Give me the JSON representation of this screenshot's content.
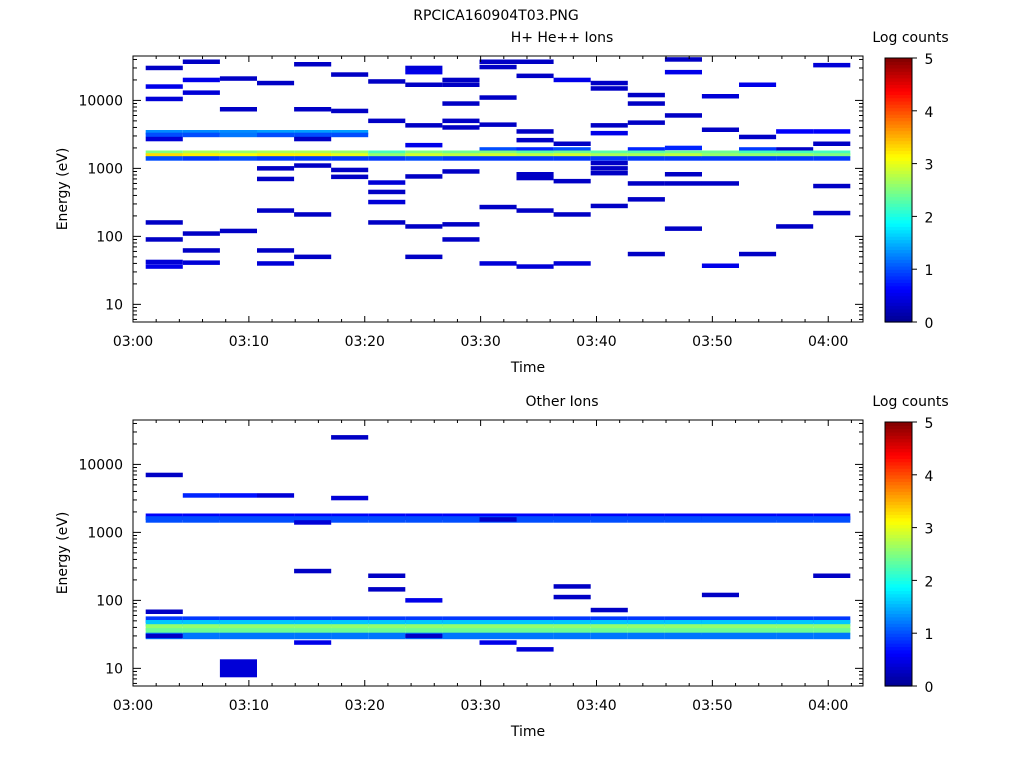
{
  "figure_title": "RPCICA160904T03.PNG",
  "colormap": [
    "#00008f",
    "#0000ff",
    "#0080ff",
    "#00ffff",
    "#80ff80",
    "#ffff00",
    "#ff8000",
    "#ff0000",
    "#800000"
  ],
  "chart_data": [
    {
      "type": "heatmap",
      "title": "H+ He++ Ions",
      "xlabel": "Time",
      "ylabel": "Energy (eV)",
      "colorbar_label": "Log counts",
      "colorbar_ticks": [
        "0",
        "1",
        "2",
        "3",
        "4",
        "5"
      ],
      "xticks": [
        "03:00",
        "03:10",
        "03:20",
        "03:30",
        "03:40",
        "03:50",
        "04:00"
      ],
      "yticks": [
        "10",
        "100",
        "1000",
        "10000"
      ],
      "xlim_minutes": [
        0,
        63
      ],
      "ylim_eV": [
        5.5,
        45000
      ],
      "scale_y": "log",
      "time_bin_edges_minutes": [
        1.1,
        4.3,
        7.5,
        10.7,
        13.9,
        17.1,
        20.3,
        23.5,
        26.7,
        29.9,
        33.1,
        36.3,
        39.5,
        42.7,
        45.9,
        49.1,
        52.3,
        55.5,
        58.7,
        61.9
      ],
      "cells": [
        {
          "e": 30000,
          "v": 0.3
        },
        {
          "e": 16000,
          "v": 0.5
        },
        {
          "e": 10500,
          "v": 0.4
        },
        {
          "e": 3400,
          "v": 1.3
        },
        {
          "e": 3100,
          "v": 1.0
        },
        {
          "e": 2700,
          "v": 0.4
        },
        {
          "e": 1700,
          "v": 2.5
        },
        {
          "e": 1550,
          "v": 3.3
        },
        {
          "e": 1400,
          "v": 1.0
        },
        {
          "e": 160,
          "v": 0.3
        },
        {
          "e": 90,
          "v": 0.3
        },
        {
          "e": 42,
          "v": 0.4
        },
        {
          "e": 36,
          "v": 0.5
        },
        {
          "e": 37000,
          "v": 0.3
        },
        {
          "e": 20000,
          "v": 0.5
        },
        {
          "e": 13000,
          "v": 0.4
        },
        {
          "e": 3400,
          "v": 1.3
        },
        {
          "e": 3100,
          "v": 1.0
        },
        {
          "e": 1700,
          "v": 2.7
        },
        {
          "e": 1550,
          "v": 3.2
        },
        {
          "e": 1400,
          "v": 0.9
        },
        {
          "e": 110,
          "v": 0.3
        },
        {
          "e": 62,
          "v": 0.3
        },
        {
          "e": 41,
          "v": 0.4
        },
        {
          "e": 21000,
          "v": 0.3
        },
        {
          "e": 7400,
          "v": 0.3
        },
        {
          "e": 3400,
          "v": 1.3
        },
        {
          "e": 3100,
          "v": 1.2
        },
        {
          "e": 1700,
          "v": 2.6
        },
        {
          "e": 1550,
          "v": 3.1
        },
        {
          "e": 1400,
          "v": 1.0
        },
        {
          "e": 120,
          "v": 0.3
        },
        {
          "e": 18000,
          "v": 0.3
        },
        {
          "e": 3400,
          "v": 1.4
        },
        {
          "e": 3100,
          "v": 1.0
        },
        {
          "e": 1700,
          "v": 2.7
        },
        {
          "e": 1550,
          "v": 3.2
        },
        {
          "e": 1400,
          "v": 0.9
        },
        {
          "e": 1000,
          "v": 0.3
        },
        {
          "e": 700,
          "v": 0.3
        },
        {
          "e": 240,
          "v": 0.3
        },
        {
          "e": 62,
          "v": 0.3
        },
        {
          "e": 40,
          "v": 0.4
        },
        {
          "e": 34000,
          "v": 0.3
        },
        {
          "e": 7400,
          "v": 0.3
        },
        {
          "e": 3400,
          "v": 1.4
        },
        {
          "e": 3100,
          "v": 1.0
        },
        {
          "e": 2700,
          "v": 0.3
        },
        {
          "e": 1700,
          "v": 2.7
        },
        {
          "e": 1550,
          "v": 3.2
        },
        {
          "e": 1400,
          "v": 0.9
        },
        {
          "e": 1100,
          "v": 0.3
        },
        {
          "e": 210,
          "v": 0.3
        },
        {
          "e": 50,
          "v": 0.3
        },
        {
          "e": 24000,
          "v": 0.3
        },
        {
          "e": 7000,
          "v": 0.3
        },
        {
          "e": 3400,
          "v": 1.4
        },
        {
          "e": 3100,
          "v": 1.0
        },
        {
          "e": 1700,
          "v": 2.6
        },
        {
          "e": 1550,
          "v": 3.0
        },
        {
          "e": 1400,
          "v": 0.9
        },
        {
          "e": 950,
          "v": 0.3
        },
        {
          "e": 750,
          "v": 0.3
        },
        {
          "e": 19000,
          "v": 0.3
        },
        {
          "e": 5000,
          "v": 0.3
        },
        {
          "e": 1700,
          "v": 2.2
        },
        {
          "e": 1550,
          "v": 2.6
        },
        {
          "e": 1400,
          "v": 0.9
        },
        {
          "e": 620,
          "v": 0.4
        },
        {
          "e": 450,
          "v": 0.3
        },
        {
          "e": 320,
          "v": 0.4
        },
        {
          "e": 160,
          "v": 0.3
        },
        {
          "e": 30000,
          "v": 0.4
        },
        {
          "e": 26000,
          "v": 0.5
        },
        {
          "e": 17000,
          "v": 0.3
        },
        {
          "e": 4300,
          "v": 0.3
        },
        {
          "e": 2200,
          "v": 0.5
        },
        {
          "e": 1700,
          "v": 2.5
        },
        {
          "e": 1550,
          "v": 2.9
        },
        {
          "e": 1400,
          "v": 1.0
        },
        {
          "e": 760,
          "v": 0.3
        },
        {
          "e": 140,
          "v": 0.3
        },
        {
          "e": 50,
          "v": 0.3
        },
        {
          "e": 20000,
          "v": 0.3
        },
        {
          "e": 17000,
          "v": 0.3
        },
        {
          "e": 9000,
          "v": 0.3
        },
        {
          "e": 5000,
          "v": 0.3
        },
        {
          "e": 4000,
          "v": 0.3
        },
        {
          "e": 1700,
          "v": 2.4
        },
        {
          "e": 1550,
          "v": 2.8
        },
        {
          "e": 1400,
          "v": 0.9
        },
        {
          "e": 900,
          "v": 0.3
        },
        {
          "e": 150,
          "v": 0.3
        },
        {
          "e": 90,
          "v": 0.3
        },
        {
          "e": 37000,
          "v": 0.3
        },
        {
          "e": 31000,
          "v": 0.3
        },
        {
          "e": 11000,
          "v": 0.3
        },
        {
          "e": 4400,
          "v": 0.3
        },
        {
          "e": 1900,
          "v": 1.0
        },
        {
          "e": 1700,
          "v": 2.5
        },
        {
          "e": 1550,
          "v": 2.9
        },
        {
          "e": 1400,
          "v": 0.9
        },
        {
          "e": 270,
          "v": 0.3
        },
        {
          "e": 40,
          "v": 0.4
        },
        {
          "e": 37000,
          "v": 0.3
        },
        {
          "e": 23000,
          "v": 0.3
        },
        {
          "e": 3500,
          "v": 0.3
        },
        {
          "e": 2600,
          "v": 0.3
        },
        {
          "e": 1900,
          "v": 0.8
        },
        {
          "e": 1700,
          "v": 2.3
        },
        {
          "e": 1550,
          "v": 2.8
        },
        {
          "e": 1400,
          "v": 0.9
        },
        {
          "e": 820,
          "v": 0.3
        },
        {
          "e": 720,
          "v": 0.3
        },
        {
          "e": 240,
          "v": 0.3
        },
        {
          "e": 36,
          "v": 0.4
        },
        {
          "e": 20000,
          "v": 0.5
        },
        {
          "e": 2300,
          "v": 0.3
        },
        {
          "e": 1900,
          "v": 1.0
        },
        {
          "e": 1700,
          "v": 2.4
        },
        {
          "e": 1550,
          "v": 2.9
        },
        {
          "e": 1400,
          "v": 0.9
        },
        {
          "e": 650,
          "v": 0.3
        },
        {
          "e": 210,
          "v": 0.3
        },
        {
          "e": 40,
          "v": 0.4
        },
        {
          "e": 18000,
          "v": 0.3
        },
        {
          "e": 15000,
          "v": 0.3
        },
        {
          "e": 4300,
          "v": 0.3
        },
        {
          "e": 3300,
          "v": 0.5
        },
        {
          "e": 1700,
          "v": 2.3
        },
        {
          "e": 1550,
          "v": 2.7
        },
        {
          "e": 1400,
          "v": 0.9
        },
        {
          "e": 1200,
          "v": 0.3
        },
        {
          "e": 1000,
          "v": 0.3
        },
        {
          "e": 850,
          "v": 0.3
        },
        {
          "e": 280,
          "v": 0.3
        },
        {
          "e": 12000,
          "v": 0.3
        },
        {
          "e": 9000,
          "v": 0.3
        },
        {
          "e": 4700,
          "v": 0.3
        },
        {
          "e": 1900,
          "v": 0.8
        },
        {
          "e": 1700,
          "v": 2.3
        },
        {
          "e": 1550,
          "v": 2.7
        },
        {
          "e": 1400,
          "v": 0.9
        },
        {
          "e": 600,
          "v": 0.3
        },
        {
          "e": 350,
          "v": 0.3
        },
        {
          "e": 55,
          "v": 0.3
        },
        {
          "e": 40000,
          "v": 0.3
        },
        {
          "e": 26000,
          "v": 0.5
        },
        {
          "e": 6000,
          "v": 0.3
        },
        {
          "e": 2000,
          "v": 0.8
        },
        {
          "e": 1700,
          "v": 2.4
        },
        {
          "e": 1550,
          "v": 2.8
        },
        {
          "e": 1400,
          "v": 0.9
        },
        {
          "e": 820,
          "v": 0.3
        },
        {
          "e": 600,
          "v": 0.3
        },
        {
          "e": 130,
          "v": 0.3
        },
        {
          "e": 11500,
          "v": 0.4
        },
        {
          "e": 3700,
          "v": 0.3
        },
        {
          "e": 1700,
          "v": 2.4
        },
        {
          "e": 1550,
          "v": 2.6
        },
        {
          "e": 1400,
          "v": 0.9
        },
        {
          "e": 600,
          "v": 0.3
        },
        {
          "e": 37,
          "v": 0.5
        },
        {
          "e": 17000,
          "v": 0.5
        },
        {
          "e": 2900,
          "v": 0.3
        },
        {
          "e": 1900,
          "v": 0.9
        },
        {
          "e": 1700,
          "v": 2.2
        },
        {
          "e": 1550,
          "v": 2.6
        },
        {
          "e": 1400,
          "v": 0.9
        },
        {
          "e": 55,
          "v": 0.3
        },
        {
          "e": 3500,
          "v": 0.6
        },
        {
          "e": 1900,
          "v": 0.3
        },
        {
          "e": 1700,
          "v": 2.2
        },
        {
          "e": 1550,
          "v": 2.6
        },
        {
          "e": 1400,
          "v": 0.9
        },
        {
          "e": 140,
          "v": 0.3
        },
        {
          "e": 33000,
          "v": 0.4
        },
        {
          "e": 3500,
          "v": 0.6
        },
        {
          "e": 2300,
          "v": 0.3
        },
        {
          "e": 1700,
          "v": 2.2
        },
        {
          "e": 1550,
          "v": 2.5
        },
        {
          "e": 1400,
          "v": 0.9
        },
        {
          "e": 550,
          "v": 0.3
        },
        {
          "e": 220,
          "v": 0.3
        }
      ],
      "cell_bins": [
        0,
        0,
        0,
        0,
        0,
        0,
        0,
        0,
        0,
        0,
        0,
        0,
        0,
        1,
        1,
        1,
        1,
        1,
        1,
        1,
        1,
        1,
        1,
        1,
        2,
        2,
        2,
        2,
        2,
        2,
        2,
        2,
        3,
        3,
        3,
        3,
        3,
        3,
        3,
        3,
        3,
        3,
        3,
        4,
        4,
        4,
        4,
        4,
        4,
        4,
        4,
        4,
        4,
        4,
        5,
        5,
        5,
        5,
        5,
        5,
        5,
        5,
        5,
        6,
        6,
        6,
        6,
        6,
        6,
        6,
        6,
        6,
        7,
        7,
        7,
        7,
        7,
        7,
        7,
        7,
        7,
        7,
        7,
        8,
        8,
        8,
        8,
        8,
        8,
        8,
        8,
        8,
        8,
        8,
        9,
        9,
        9,
        9,
        9,
        9,
        9,
        9,
        9,
        9,
        10,
        10,
        10,
        10,
        10,
        10,
        10,
        10,
        10,
        10,
        10,
        10,
        11,
        11,
        11,
        11,
        11,
        11,
        11,
        11,
        11,
        12,
        12,
        12,
        12,
        12,
        12,
        12,
        12,
        12,
        12,
        12,
        13,
        13,
        13,
        13,
        13,
        13,
        13,
        13,
        13,
        13,
        14,
        14,
        14,
        14,
        14,
        14,
        14,
        14,
        14,
        14,
        15,
        15,
        15,
        15,
        15,
        15,
        15,
        16,
        16,
        16,
        16,
        16,
        16,
        16,
        17,
        17,
        17,
        17,
        17,
        17,
        18,
        18,
        18,
        18,
        18,
        18,
        18,
        18
      ]
    },
    {
      "type": "heatmap",
      "title": "Other Ions",
      "xlabel": "Time",
      "ylabel": "Energy (eV)",
      "colorbar_label": "Log counts",
      "colorbar_ticks": [
        "0",
        "1",
        "2",
        "3",
        "4",
        "5"
      ],
      "xticks": [
        "03:00",
        "03:10",
        "03:20",
        "03:30",
        "03:40",
        "03:50",
        "04:00"
      ],
      "yticks": [
        "10",
        "100",
        "1000",
        "10000"
      ],
      "xlim_minutes": [
        0,
        63
      ],
      "ylim_eV": [
        5.5,
        45000
      ],
      "scale_y": "log",
      "time_bin_edges_minutes": [
        1.1,
        4.3,
        7.5,
        10.7,
        13.9,
        17.1,
        20.3,
        23.5,
        26.7,
        29.9,
        33.1,
        36.3,
        39.5,
        42.7,
        45.9,
        49.1,
        52.3,
        55.5,
        58.7,
        61.9
      ],
      "constant_bands": [
        {
          "e": 1700,
          "v": 0.6
        },
        {
          "e": 1550,
          "v": 1.0
        },
        {
          "e": 52,
          "v": 0.9
        },
        {
          "e": 46,
          "v": 1.6
        },
        {
          "e": 40,
          "v": 2.6
        },
        {
          "e": 35,
          "v": 2.4
        },
        {
          "e": 30,
          "v": 1.2
        }
      ],
      "cells": [
        {
          "e": 7000,
          "v": 0.3
        },
        {
          "e": 68,
          "v": 0.3
        },
        {
          "e": 30,
          "v": 0.3
        },
        {
          "e": 3500,
          "v": 0.8
        },
        {
          "e": 3500,
          "v": 0.7
        },
        {
          "e": 10,
          "v": 0.4
        },
        {
          "e": 3500,
          "v": 0.4
        },
        {
          "e": 1400,
          "v": 0.4
        },
        {
          "e": 270,
          "v": 0.3
        },
        {
          "e": 24,
          "v": 0.5
        },
        {
          "e": 25000,
          "v": 0.3
        },
        {
          "e": 3200,
          "v": 0.4
        },
        {
          "e": 230,
          "v": 0.3
        },
        {
          "e": 145,
          "v": 0.3
        },
        {
          "e": 100,
          "v": 0.5
        },
        {
          "e": 30,
          "v": 0.3
        },
        {
          "e": 1550,
          "v": 0.3
        },
        {
          "e": 24,
          "v": 0.5
        },
        {
          "e": 19,
          "v": 0.4
        },
        {
          "e": 160,
          "v": 0.3
        },
        {
          "e": 112,
          "v": 0.3
        },
        {
          "e": 72,
          "v": 0.3
        },
        {
          "e": 120,
          "v": 0.3
        },
        {
          "e": 230,
          "v": 0.3
        }
      ],
      "cell_bins": [
        0,
        0,
        0,
        1,
        2,
        2,
        3,
        4,
        4,
        4,
        5,
        5,
        6,
        6,
        7,
        7,
        9,
        9,
        10,
        11,
        11,
        12,
        15,
        18
      ]
    }
  ]
}
